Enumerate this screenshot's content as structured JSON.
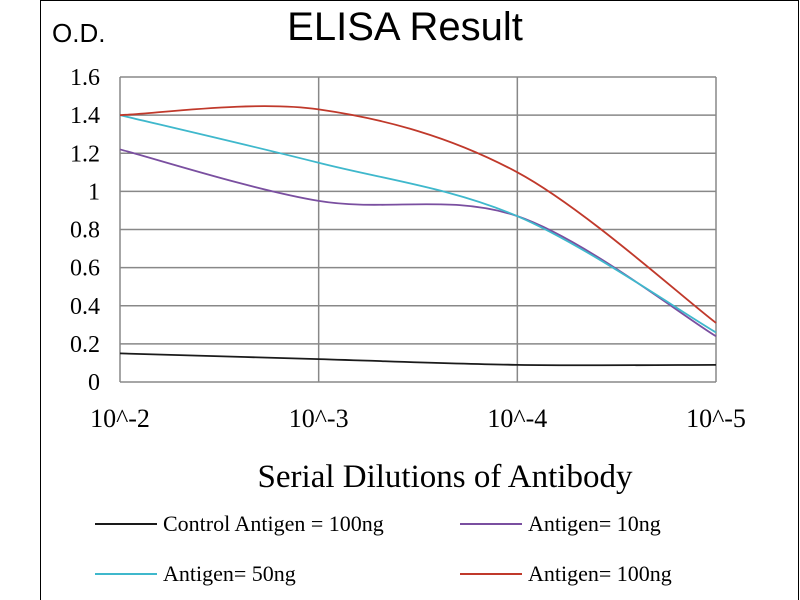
{
  "chart_data": {
    "type": "line",
    "title": "ELISA Result",
    "ylabel": "O.D.",
    "xlabel": "Serial Dilutions  of Antibody",
    "x_categories": [
      "10^-2",
      "10^-3",
      "10^-4",
      "10^-5"
    ],
    "yticks": [
      "0",
      "0.2",
      "0.4",
      "0.6",
      "0.8",
      "1",
      "1.2",
      "1.4",
      "1.6"
    ],
    "ylim": [
      0,
      1.6
    ],
    "grid": true,
    "legend_position": "bottom",
    "series": [
      {
        "name": "Control Antigen = 100ng",
        "color": "#1a1a1a",
        "values": [
          0.15,
          0.12,
          0.09,
          0.09
        ]
      },
      {
        "name": "Antigen= 10ng",
        "color": "#7a4fa0",
        "values": [
          1.22,
          0.95,
          0.87,
          0.24
        ]
      },
      {
        "name": "Antigen= 50ng",
        "color": "#3fb8cc",
        "values": [
          1.4,
          1.15,
          0.87,
          0.26
        ]
      },
      {
        "name": "Antigen= 100ng",
        "color": "#c0392b",
        "values": [
          1.4,
          1.43,
          1.1,
          0.31
        ]
      }
    ]
  }
}
